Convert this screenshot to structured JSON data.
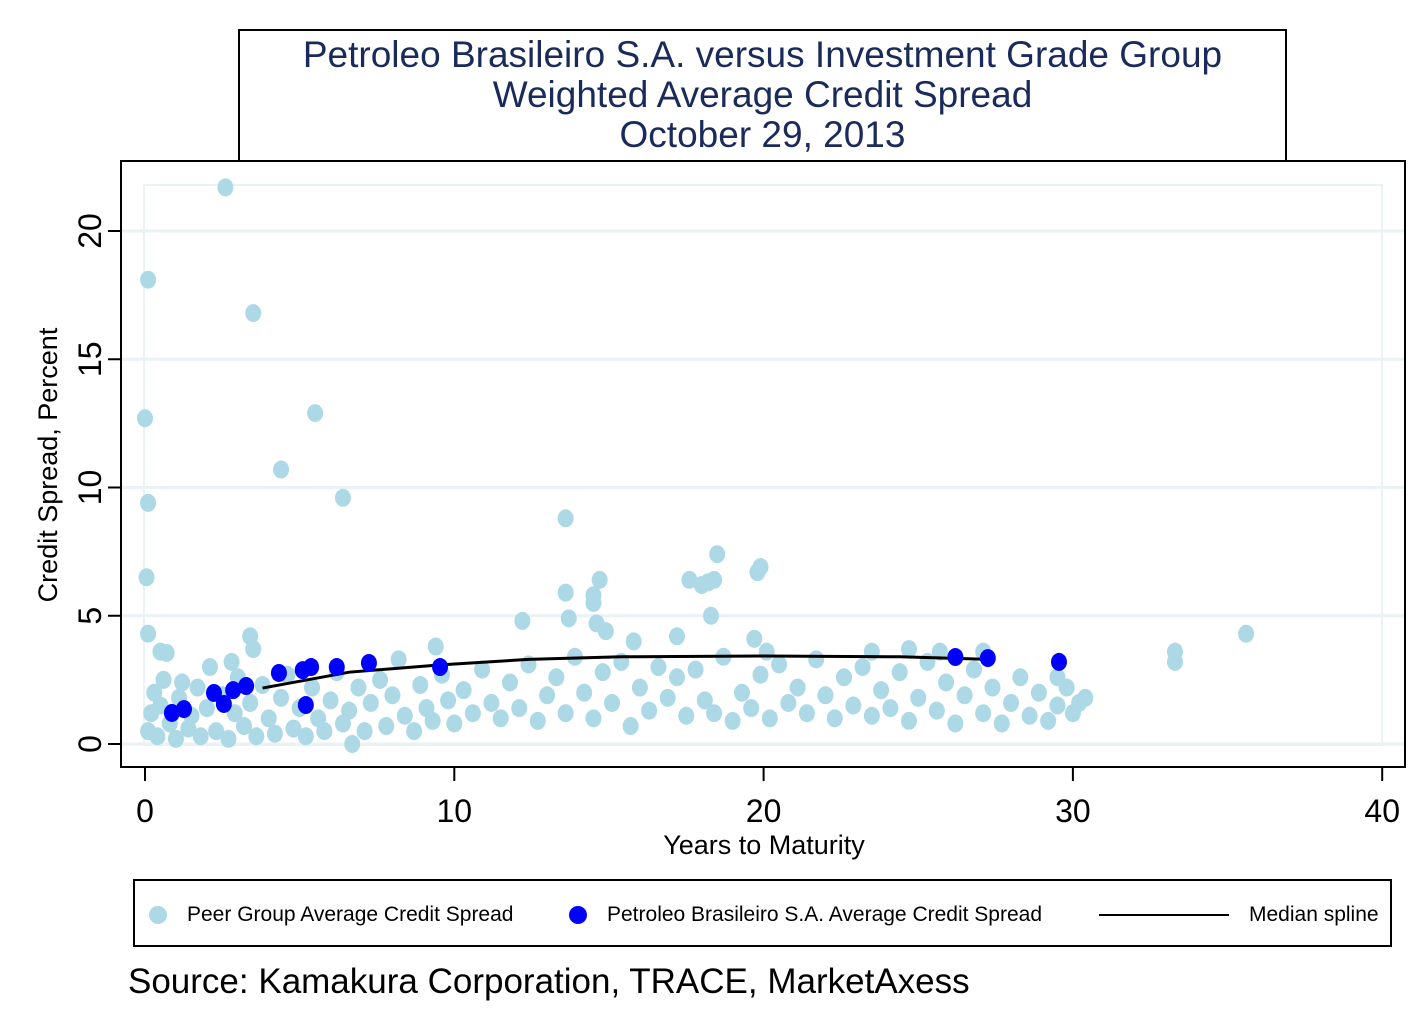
{
  "chart_data": {
    "type": "scatter",
    "title": [
      "Petroleo Brasileiro S.A. versus Investment Grade Group",
      "Weighted Average Credit Spread",
      "October 29, 2013"
    ],
    "xlabel": "Years to Maturity",
    "ylabel": "Credit Spread, Percent",
    "xlim": [
      0,
      40
    ],
    "ylim": [
      0,
      21.9
    ],
    "xticks": [
      "0",
      "10",
      "20",
      "30",
      "40"
    ],
    "yticks": [
      "0",
      "5",
      "10",
      "15",
      "20"
    ],
    "grid": true,
    "legend_position": "bottom",
    "colors": {
      "peer": "#add8e6",
      "petrobras": "#0000ff",
      "spline": "#000000",
      "title": "#1a2a5a",
      "grid": "#eaf2f3"
    },
    "series": [
      {
        "name": "Peer Group Average Credit Spread",
        "type": "scatter",
        "points": [
          [
            2.6,
            21.7
          ],
          [
            0.1,
            18.1
          ],
          [
            3.5,
            16.8
          ],
          [
            5.5,
            12.9
          ],
          [
            0.0,
            12.7
          ],
          [
            4.4,
            10.7
          ],
          [
            0.1,
            9.4
          ],
          [
            6.4,
            9.6
          ],
          [
            13.6,
            8.8
          ],
          [
            0.05,
            6.5
          ],
          [
            18.5,
            7.4
          ],
          [
            19.9,
            6.9
          ],
          [
            19.8,
            6.7
          ],
          [
            17.6,
            6.4
          ],
          [
            18.2,
            6.3
          ],
          [
            18.4,
            6.4
          ],
          [
            18.0,
            6.2
          ],
          [
            14.7,
            6.4
          ],
          [
            13.6,
            5.9
          ],
          [
            14.5,
            5.8
          ],
          [
            14.5,
            5.5
          ],
          [
            13.7,
            4.9
          ],
          [
            14.6,
            4.7
          ],
          [
            18.3,
            5.0
          ],
          [
            12.2,
            4.8
          ],
          [
            0.1,
            4.3
          ],
          [
            3.4,
            4.2
          ],
          [
            15.8,
            4.0
          ],
          [
            17.2,
            4.2
          ],
          [
            19.7,
            4.1
          ],
          [
            14.9,
            4.4
          ],
          [
            33.3,
            3.6
          ],
          [
            33.3,
            3.2
          ],
          [
            35.6,
            4.3
          ],
          [
            0.5,
            3.6
          ],
          [
            0.7,
            3.55
          ],
          [
            3.5,
            3.7
          ],
          [
            9.4,
            3.8
          ],
          [
            2.8,
            3.2
          ],
          [
            24.7,
            3.7
          ],
          [
            23.5,
            3.6
          ],
          [
            25.7,
            3.6
          ],
          [
            27.1,
            3.6
          ],
          [
            20.1,
            3.6
          ],
          [
            29.5,
            2.6
          ],
          [
            6.7,
            0.0
          ],
          [
            30.4,
            1.8
          ],
          [
            0.1,
            0.5
          ],
          [
            0.2,
            1.2
          ],
          [
            0.3,
            2.0
          ],
          [
            0.4,
            0.3
          ],
          [
            0.5,
            1.5
          ],
          [
            0.6,
            2.5
          ],
          [
            0.8,
            0.8
          ],
          [
            1.0,
            0.2
          ],
          [
            1.1,
            1.8
          ],
          [
            1.2,
            2.4
          ],
          [
            1.4,
            0.6
          ],
          [
            1.5,
            1.1
          ],
          [
            1.7,
            2.2
          ],
          [
            1.8,
            0.3
          ],
          [
            2.0,
            1.4
          ],
          [
            2.1,
            3.0
          ],
          [
            2.3,
            0.5
          ],
          [
            2.5,
            1.9
          ],
          [
            2.7,
            0.2
          ],
          [
            2.9,
            1.2
          ],
          [
            3.0,
            2.6
          ],
          [
            3.2,
            0.7
          ],
          [
            3.4,
            1.6
          ],
          [
            3.6,
            0.3
          ],
          [
            3.8,
            2.3
          ],
          [
            4.0,
            1.0
          ],
          [
            4.2,
            0.4
          ],
          [
            4.4,
            1.8
          ],
          [
            4.6,
            2.7
          ],
          [
            4.8,
            0.6
          ],
          [
            5.0,
            1.4
          ],
          [
            5.2,
            0.3
          ],
          [
            5.4,
            2.2
          ],
          [
            5.6,
            1.0
          ],
          [
            5.8,
            0.5
          ],
          [
            6.0,
            1.7
          ],
          [
            6.2,
            2.8
          ],
          [
            6.4,
            0.8
          ],
          [
            6.6,
            1.3
          ],
          [
            6.9,
            2.2
          ],
          [
            7.1,
            0.5
          ],
          [
            7.3,
            1.6
          ],
          [
            7.6,
            2.5
          ],
          [
            7.8,
            0.7
          ],
          [
            8.0,
            1.9
          ],
          [
            8.2,
            3.3
          ],
          [
            8.4,
            1.1
          ],
          [
            8.7,
            0.5
          ],
          [
            8.9,
            2.3
          ],
          [
            9.1,
            1.4
          ],
          [
            9.3,
            0.9
          ],
          [
            9.6,
            2.7
          ],
          [
            9.8,
            1.7
          ],
          [
            10.0,
            0.8
          ],
          [
            10.3,
            2.1
          ],
          [
            10.6,
            1.2
          ],
          [
            10.9,
            2.9
          ],
          [
            11.2,
            1.6
          ],
          [
            11.5,
            1.0
          ],
          [
            11.8,
            2.4
          ],
          [
            12.1,
            1.4
          ],
          [
            12.4,
            3.1
          ],
          [
            12.7,
            0.9
          ],
          [
            13.0,
            1.9
          ],
          [
            13.3,
            2.6
          ],
          [
            13.6,
            1.2
          ],
          [
            13.9,
            3.4
          ],
          [
            14.2,
            2.0
          ],
          [
            14.5,
            1.0
          ],
          [
            14.8,
            2.8
          ],
          [
            15.1,
            1.6
          ],
          [
            15.4,
            3.2
          ],
          [
            15.7,
            0.7
          ],
          [
            16.0,
            2.2
          ],
          [
            16.3,
            1.3
          ],
          [
            16.6,
            3.0
          ],
          [
            16.9,
            1.8
          ],
          [
            17.2,
            2.6
          ],
          [
            17.5,
            1.1
          ],
          [
            17.8,
            2.9
          ],
          [
            18.1,
            1.7
          ],
          [
            18.4,
            1.2
          ],
          [
            18.7,
            3.4
          ],
          [
            19.0,
            0.9
          ],
          [
            19.3,
            2.0
          ],
          [
            19.6,
            1.4
          ],
          [
            19.9,
            2.7
          ],
          [
            20.2,
            1.0
          ],
          [
            20.5,
            3.1
          ],
          [
            20.8,
            1.6
          ],
          [
            21.1,
            2.2
          ],
          [
            21.4,
            1.2
          ],
          [
            21.7,
            3.3
          ],
          [
            22.0,
            1.9
          ],
          [
            22.3,
            1.0
          ],
          [
            22.6,
            2.6
          ],
          [
            22.9,
            1.5
          ],
          [
            23.2,
            3.0
          ],
          [
            23.5,
            1.1
          ],
          [
            23.8,
            2.1
          ],
          [
            24.1,
            1.4
          ],
          [
            24.4,
            2.8
          ],
          [
            24.7,
            0.9
          ],
          [
            25.0,
            1.8
          ],
          [
            25.3,
            3.2
          ],
          [
            25.6,
            1.3
          ],
          [
            25.9,
            2.4
          ],
          [
            26.2,
            0.8
          ],
          [
            26.5,
            1.9
          ],
          [
            26.8,
            2.9
          ],
          [
            27.1,
            1.2
          ],
          [
            27.4,
            2.2
          ],
          [
            27.7,
            0.8
          ],
          [
            28.0,
            1.6
          ],
          [
            28.3,
            2.6
          ],
          [
            28.6,
            1.1
          ],
          [
            28.9,
            2.0
          ],
          [
            29.2,
            0.9
          ],
          [
            29.5,
            1.5
          ],
          [
            29.8,
            2.2
          ],
          [
            30.0,
            1.2
          ],
          [
            30.2,
            1.6
          ]
        ]
      },
      {
        "name": "Petroleo Brasileiro S.A. Average Credit Spread",
        "type": "scatter",
        "points": [
          [
            0.87,
            1.21
          ],
          [
            1.26,
            1.36
          ],
          [
            2.23,
            1.99
          ],
          [
            2.55,
            1.56
          ],
          [
            2.85,
            2.1
          ],
          [
            3.27,
            2.26
          ],
          [
            4.33,
            2.77
          ],
          [
            5.1,
            2.88
          ],
          [
            5.37,
            3.0
          ],
          [
            5.2,
            1.52
          ],
          [
            6.2,
            3.0
          ],
          [
            7.24,
            3.16
          ],
          [
            9.54,
            3.0
          ],
          [
            26.2,
            3.39
          ],
          [
            27.25,
            3.35
          ],
          [
            29.55,
            3.2
          ]
        ]
      },
      {
        "name": "Median spline",
        "type": "line",
        "points": [
          [
            3.8,
            2.18
          ],
          [
            6.6,
            2.8
          ],
          [
            9.5,
            3.08
          ],
          [
            12.4,
            3.3
          ],
          [
            15.4,
            3.4
          ],
          [
            20,
            3.43
          ],
          [
            24.4,
            3.4
          ],
          [
            27.3,
            3.3
          ]
        ]
      }
    ],
    "source": "Source: Kamakura Corporation, TRACE, MarketAxess"
  }
}
